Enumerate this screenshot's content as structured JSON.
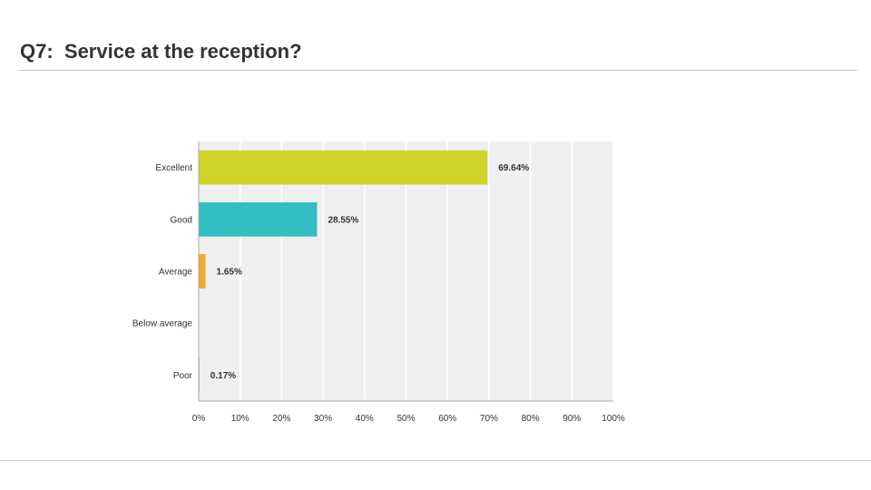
{
  "slide": {
    "title": "Q7:  Service at the reception?"
  },
  "chart_data": {
    "type": "bar",
    "orientation": "horizontal",
    "categories": [
      "Excellent",
      "Good",
      "Average",
      "Below average",
      "Poor"
    ],
    "values": [
      69.64,
      28.55,
      1.65,
      0,
      0.17
    ],
    "value_labels": [
      "69.64%",
      "28.55%",
      "1.65%",
      "",
      "0.17%"
    ],
    "colors": [
      "#cdd52a",
      "#33bfc1",
      "#f2a72b",
      "#999999",
      "#999999"
    ],
    "xlim": [
      0,
      100
    ],
    "xticks": [
      "0%",
      "10%",
      "20%",
      "30%",
      "40%",
      "50%",
      "60%",
      "70%",
      "80%",
      "90%",
      "100%"
    ],
    "grid": true,
    "plot_background": "#f0f0f0"
  }
}
